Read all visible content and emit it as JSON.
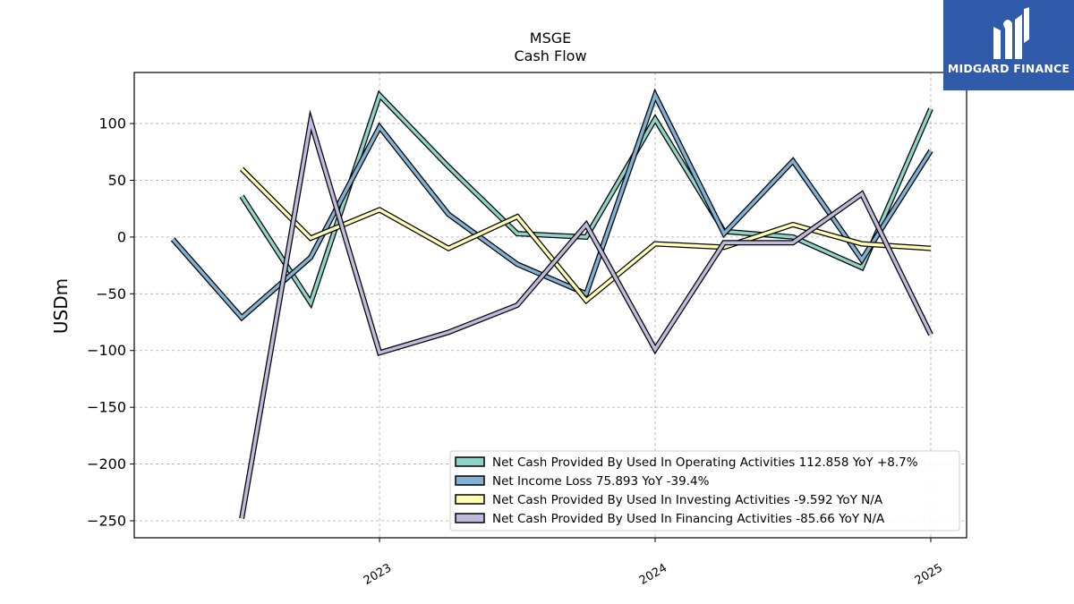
{
  "chart_data": {
    "type": "line",
    "title": "MSGE",
    "subtitle": "Cash Flow",
    "ylabel": "USDm",
    "xlabel": "",
    "ylim": [
      -265,
      145
    ],
    "xlim": [
      2022.11,
      2025.13
    ],
    "yticks": [
      100,
      50,
      0,
      -50,
      -100,
      -150,
      -200,
      -250
    ],
    "ytick_labels": [
      "100",
      "50",
      "0",
      "−50",
      "−100",
      "−150",
      "−200",
      "−250"
    ],
    "xticks": [
      2023,
      2024,
      2025
    ],
    "xtick_labels": [
      "2023",
      "2024",
      "2025"
    ],
    "grid": true,
    "legend_position": "lower-right",
    "series": [
      {
        "name": "Net Cash Provided By Used In Operating Activities  112.858 YoY +8.7%",
        "color": "#8dd3c7",
        "x": [
          2022.5,
          2022.75,
          2023.0,
          2023.25,
          2023.5,
          2023.75,
          2024.0,
          2024.25,
          2024.5,
          2024.75,
          2025.0
        ],
        "values": [
          36,
          -58,
          125,
          62,
          3,
          0,
          104,
          5,
          0,
          -27,
          113
        ]
      },
      {
        "name": "Net Income Loss  75.893 YoY -39.4%",
        "color": "#80b1d3",
        "x": [
          2022.25,
          2022.5,
          2022.75,
          2023.0,
          2023.25,
          2023.5,
          2023.75,
          2024.0,
          2024.25,
          2024.5,
          2024.75,
          2025.0
        ],
        "values": [
          -2,
          -71,
          -18,
          97,
          20,
          -24,
          -50,
          125,
          3,
          67,
          -20,
          76
        ]
      },
      {
        "name": "Net Cash Provided By Used In Investing Activities  -9.592 YoY N/A",
        "color": "#ffffb3",
        "x": [
          2022.5,
          2022.75,
          2023.0,
          2023.25,
          2023.5,
          2023.75,
          2024.0,
          2024.25,
          2024.5,
          2024.75,
          2025.0
        ],
        "values": [
          60,
          -1,
          24,
          -10,
          18,
          -56,
          -6,
          -9,
          11,
          -6,
          -10
        ]
      },
      {
        "name": "Net Cash Provided By Used In Financing Activities  -85.66 YoY N/A",
        "color": "#bebada",
        "x": [
          2022.5,
          2022.75,
          2023.0,
          2023.25,
          2023.5,
          2023.75,
          2024.0,
          2024.25,
          2024.5,
          2024.75,
          2025.0
        ],
        "values": [
          -248,
          102,
          -102,
          -84,
          -60,
          11,
          -99,
          -5,
          -5,
          38,
          -86
        ]
      }
    ]
  },
  "logo": {
    "text": "MIDGARD FINANCE",
    "background": "#2f5baa"
  }
}
